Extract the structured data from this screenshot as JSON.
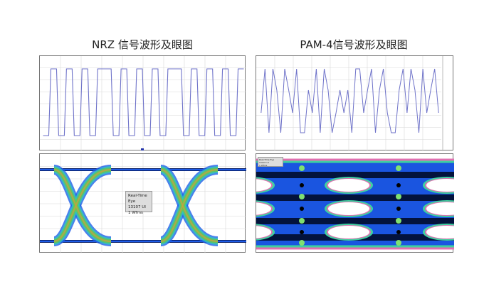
{
  "nrz": {
    "title": "NRZ 信号波形及眼图",
    "bits": [
      0,
      1,
      0,
      1,
      0,
      1,
      0,
      1,
      1,
      0,
      1,
      0,
      1,
      0,
      1,
      0,
      1,
      1,
      0,
      1,
      0,
      1,
      0,
      1,
      0,
      1
    ],
    "eye_label": [
      "Real-Time Eye",
      "13107 UI",
      "1 Wfms"
    ]
  },
  "pam4": {
    "title": "PAM-4信号波形及眼图",
    "symbols": [
      1,
      3,
      0,
      3,
      2,
      0,
      3,
      2,
      1,
      3,
      0,
      0,
      2,
      1,
      3,
      0,
      3,
      2,
      0,
      1,
      2,
      1,
      2,
      0,
      3,
      3,
      1,
      2,
      3,
      0,
      2,
      3,
      1,
      0,
      0,
      2,
      3,
      1,
      3,
      2,
      0,
      3,
      1,
      2,
      3,
      1
    ],
    "eye_label": [
      "Real-Time Eye",
      "13107 UI",
      "1 Wfms"
    ]
  },
  "colors": {
    "wave": "#6f73c9",
    "grid": "#d8d8d8",
    "eye_dark": "#0a1f66",
    "eye_blue": "#1e5ce8"
  }
}
